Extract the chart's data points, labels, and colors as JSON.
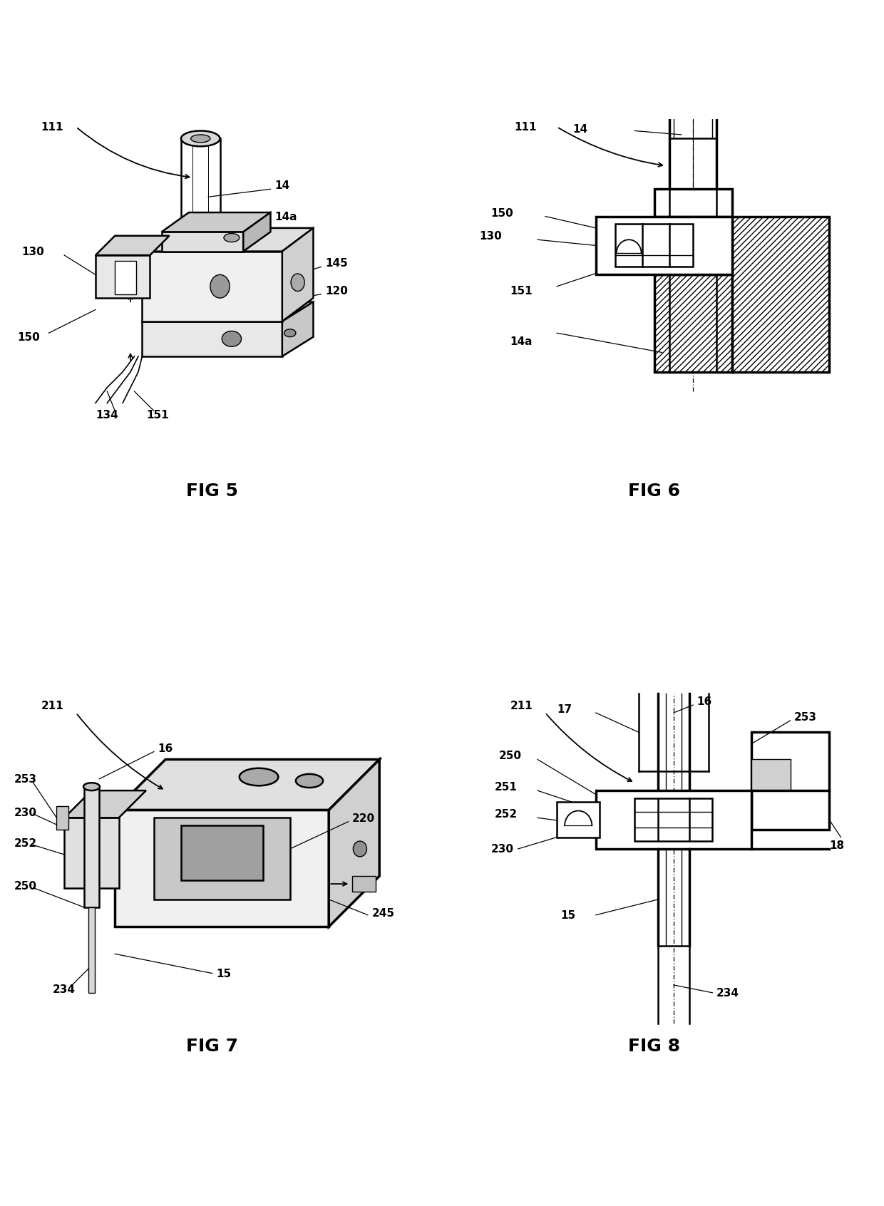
{
  "background_color": "#ffffff",
  "fig_positions": {
    "fig5": [
      0.02,
      0.52,
      0.46,
      0.46
    ],
    "fig6": [
      0.52,
      0.52,
      0.46,
      0.46
    ],
    "fig7": [
      0.02,
      0.04,
      0.46,
      0.46
    ],
    "fig8": [
      0.52,
      0.04,
      0.46,
      0.46
    ]
  },
  "labels": {
    "fig5": "FIG 5",
    "fig6": "FIG 6",
    "fig7": "FIG 7",
    "fig8": "FIG 8"
  }
}
